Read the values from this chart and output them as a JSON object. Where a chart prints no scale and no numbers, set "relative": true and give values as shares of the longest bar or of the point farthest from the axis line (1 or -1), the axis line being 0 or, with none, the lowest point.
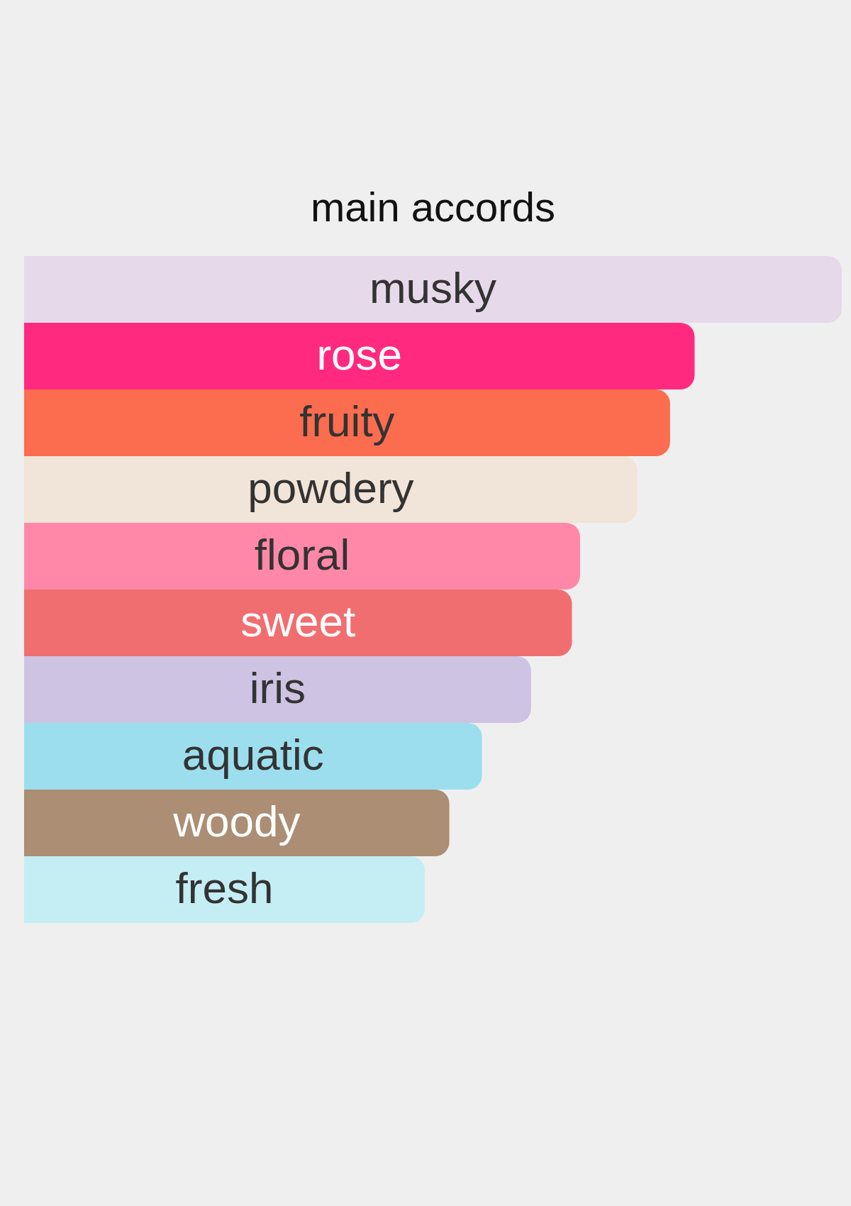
{
  "chart_data": {
    "type": "bar",
    "orientation": "horizontal",
    "relative": true,
    "title": "main accords",
    "categories": [
      "musky",
      "rose",
      "fruity",
      "powdery",
      "floral",
      "sweet",
      "iris",
      "aquatic",
      "woody",
      "fresh"
    ],
    "values": [
      1,
      0.82,
      0.79,
      0.75,
      0.68,
      0.67,
      0.62,
      0.56,
      0.52,
      0.49
    ],
    "colors": [
      "#e6d9ea",
      "#ff2a7f",
      "#fc6c4e",
      "#f1e4d8",
      "#ff88a8",
      "#f16e70",
      "#cec3e3",
      "#9cdeed",
      "#ab8e73",
      "#c5eef4"
    ]
  }
}
